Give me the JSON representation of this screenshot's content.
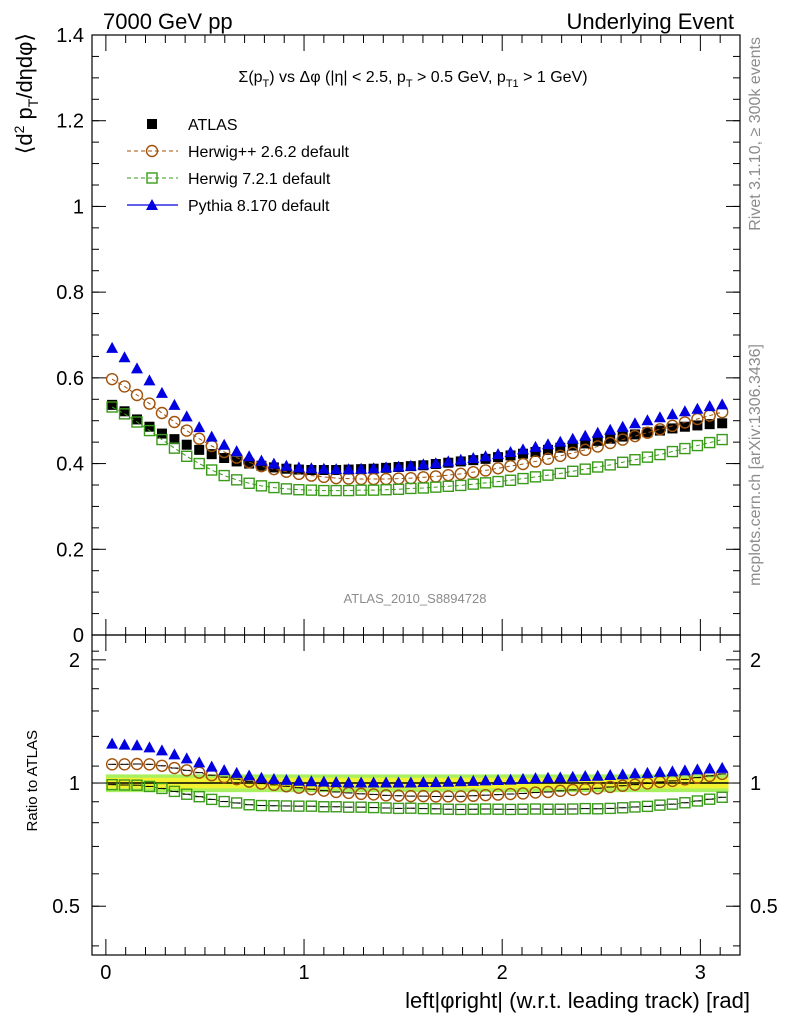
{
  "header": {
    "left": "7000 GeV pp",
    "right": "Underlying Event"
  },
  "side_texts": {
    "rivet": "Rivet 3.1.10, ≥ 300k events",
    "mcplots": "mcplots.cern.ch [arXiv:1306.3436]"
  },
  "watermark": "ATLAS_2010_S8894728",
  "colors": {
    "atlas": "#000000",
    "herwigpp": "#a0520a",
    "herwig7": "#3a9a1a",
    "pythia": "#0000e0",
    "band_inner": "#f2f230",
    "band_outer": "#a8f060"
  },
  "chart_data": [
    {
      "type": "scatter",
      "title": "Σ(p_T) vs Δφ (|η| < 2.5, p_T > 0.5 GeV, p_T1 > 1 GeV)",
      "title_parts": {
        "a": "Σ(p",
        "a_sub": "T",
        "b": ") vs Δφ (|η| < 2.5, p",
        "b_sub": "T",
        "c": " > 0.5 GeV, p",
        "c_sub": "T1",
        "d": " > 1 GeV)"
      },
      "ylabel": "⟨d² p_T/dηdφ⟩",
      "ylabel_parts": {
        "a": "⟨d",
        "sup": "2",
        "b": " p",
        "sub": "T",
        "c": "/dηdφ⟩"
      },
      "xlim": [
        -0.07,
        3.2
      ],
      "ylim": [
        0,
        1.4
      ],
      "yticks": [
        0,
        0.2,
        0.4,
        0.6,
        0.8,
        1,
        1.2,
        1.4
      ],
      "ytick_labels": [
        "0",
        "0.2",
        "0.4",
        "0.6",
        "0.8",
        "1",
        "1.2",
        "1.4"
      ],
      "legend_position": "top-left",
      "legend": [
        "ATLAS",
        "Herwig++ 2.6.2 default",
        "Herwig 7.2.1 default",
        "Pythia 8.170 default"
      ],
      "x": [
        0.0314,
        0.0942,
        0.157,
        0.22,
        0.283,
        0.346,
        0.408,
        0.471,
        0.534,
        0.597,
        0.66,
        0.723,
        0.785,
        0.848,
        0.911,
        0.974,
        1.037,
        1.1,
        1.162,
        1.225,
        1.288,
        1.351,
        1.414,
        1.477,
        1.539,
        1.602,
        1.665,
        1.728,
        1.791,
        1.854,
        1.916,
        1.979,
        2.042,
        2.105,
        2.168,
        2.231,
        2.293,
        2.356,
        2.419,
        2.482,
        2.545,
        2.608,
        2.67,
        2.733,
        2.796,
        2.859,
        2.922,
        2.985,
        3.047,
        3.11
      ],
      "series": [
        {
          "name": "ATLAS",
          "values": [
            0.537,
            0.522,
            0.503,
            0.486,
            0.47,
            0.457,
            0.444,
            0.432,
            0.422,
            0.413,
            0.405,
            0.4,
            0.395,
            0.391,
            0.388,
            0.386,
            0.385,
            0.385,
            0.385,
            0.386,
            0.387,
            0.388,
            0.39,
            0.392,
            0.394,
            0.396,
            0.399,
            0.402,
            0.405,
            0.408,
            0.411,
            0.415,
            0.419,
            0.423,
            0.427,
            0.432,
            0.437,
            0.442,
            0.447,
            0.453,
            0.458,
            0.463,
            0.468,
            0.473,
            0.477,
            0.482,
            0.486,
            0.489,
            0.492,
            0.494
          ]
        },
        {
          "name": "Herwig++ 2.6.2 default",
          "values": [
            0.597,
            0.58,
            0.56,
            0.54,
            0.518,
            0.497,
            0.477,
            0.458,
            0.441,
            0.427,
            0.414,
            0.403,
            0.394,
            0.387,
            0.381,
            0.376,
            0.372,
            0.369,
            0.366,
            0.365,
            0.364,
            0.364,
            0.364,
            0.365,
            0.366,
            0.368,
            0.37,
            0.373,
            0.376,
            0.38,
            0.384,
            0.389,
            0.394,
            0.399,
            0.405,
            0.411,
            0.418,
            0.425,
            0.432,
            0.44,
            0.448,
            0.456,
            0.464,
            0.472,
            0.48,
            0.488,
            0.496,
            0.504,
            0.512,
            0.52
          ]
        },
        {
          "name": "Herwig 7.2.1 default",
          "values": [
            0.532,
            0.516,
            0.497,
            0.477,
            0.456,
            0.436,
            0.417,
            0.4,
            0.385,
            0.372,
            0.362,
            0.354,
            0.348,
            0.344,
            0.341,
            0.339,
            0.338,
            0.337,
            0.337,
            0.337,
            0.338,
            0.338,
            0.339,
            0.34,
            0.342,
            0.343,
            0.345,
            0.347,
            0.349,
            0.352,
            0.355,
            0.358,
            0.361,
            0.365,
            0.369,
            0.373,
            0.377,
            0.382,
            0.387,
            0.392,
            0.397,
            0.403,
            0.409,
            0.415,
            0.421,
            0.428,
            0.435,
            0.442,
            0.449,
            0.456
          ]
        },
        {
          "name": "Pythia 8.170 default",
          "values": [
            0.67,
            0.648,
            0.622,
            0.594,
            0.565,
            0.537,
            0.51,
            0.485,
            0.463,
            0.444,
            0.429,
            0.417,
            0.407,
            0.4,
            0.395,
            0.391,
            0.389,
            0.388,
            0.387,
            0.387,
            0.388,
            0.389,
            0.391,
            0.393,
            0.395,
            0.398,
            0.401,
            0.405,
            0.409,
            0.413,
            0.417,
            0.422,
            0.427,
            0.433,
            0.439,
            0.445,
            0.451,
            0.458,
            0.465,
            0.472,
            0.479,
            0.486,
            0.494,
            0.501,
            0.508,
            0.515,
            0.522,
            0.528,
            0.534,
            0.538
          ]
        }
      ]
    },
    {
      "type": "scatter",
      "ylabel": "Ratio to ATLAS",
      "xlabel": "left|φright| (w.r.t. leading track) [rad]",
      "xlim": [
        -0.07,
        3.2
      ],
      "ylim": [
        0.38,
        2.3
      ],
      "yscale": "log",
      "xticks": [
        0,
        1,
        2,
        3
      ],
      "xtick_labels": [
        "0",
        "1",
        "2",
        "3"
      ],
      "yticks": [
        0.5,
        1,
        2
      ],
      "ytick_labels": [
        "0.5",
        "1",
        "2"
      ],
      "reference": 1.0,
      "band_inner_half": 0.03,
      "band_outer_half": 0.05,
      "x": [
        0.0314,
        0.0942,
        0.157,
        0.22,
        0.283,
        0.346,
        0.408,
        0.471,
        0.534,
        0.597,
        0.66,
        0.723,
        0.785,
        0.848,
        0.911,
        0.974,
        1.037,
        1.1,
        1.162,
        1.225,
        1.288,
        1.351,
        1.414,
        1.477,
        1.539,
        1.602,
        1.665,
        1.728,
        1.791,
        1.854,
        1.916,
        1.979,
        2.042,
        2.105,
        2.168,
        2.231,
        2.293,
        2.356,
        2.419,
        2.482,
        2.545,
        2.608,
        2.67,
        2.733,
        2.796,
        2.859,
        2.922,
        2.985,
        3.047,
        3.11
      ],
      "series": [
        {
          "name": "Herwig++ 2.6.2 default",
          "values": [
            1.111,
            1.111,
            1.113,
            1.111,
            1.102,
            1.088,
            1.074,
            1.06,
            1.045,
            1.034,
            1.022,
            1.008,
            0.997,
            0.99,
            0.982,
            0.974,
            0.966,
            0.958,
            0.951,
            0.946,
            0.941,
            0.938,
            0.933,
            0.931,
            0.929,
            0.929,
            0.927,
            0.928,
            0.928,
            0.931,
            0.934,
            0.937,
            0.94,
            0.943,
            0.948,
            0.951,
            0.957,
            0.962,
            0.966,
            0.971,
            0.978,
            0.985,
            0.991,
            0.998,
            1.006,
            1.012,
            1.021,
            1.031,
            1.041,
            1.053
          ]
        },
        {
          "name": "Herwig 7.2.1 default",
          "values": [
            0.991,
            0.989,
            0.988,
            0.981,
            0.97,
            0.954,
            0.939,
            0.926,
            0.912,
            0.901,
            0.894,
            0.885,
            0.881,
            0.88,
            0.879,
            0.878,
            0.878,
            0.875,
            0.875,
            0.873,
            0.873,
            0.871,
            0.869,
            0.867,
            0.868,
            0.866,
            0.865,
            0.863,
            0.862,
            0.863,
            0.864,
            0.863,
            0.862,
            0.863,
            0.864,
            0.863,
            0.863,
            0.864,
            0.866,
            0.865,
            0.867,
            0.87,
            0.874,
            0.877,
            0.883,
            0.888,
            0.895,
            0.904,
            0.913,
            0.923
          ]
        },
        {
          "name": "Pythia 8.170 default",
          "values": [
            1.248,
            1.241,
            1.237,
            1.222,
            1.202,
            1.175,
            1.149,
            1.123,
            1.097,
            1.075,
            1.059,
            1.043,
            1.03,
            1.023,
            1.018,
            1.013,
            1.01,
            1.008,
            1.005,
            1.003,
            1.003,
            1.003,
            1.003,
            1.003,
            1.003,
            1.005,
            1.005,
            1.007,
            1.01,
            1.012,
            1.015,
            1.017,
            1.019,
            1.024,
            1.028,
            1.03,
            1.032,
            1.036,
            1.04,
            1.042,
            1.046,
            1.05,
            1.056,
            1.059,
            1.065,
            1.068,
            1.074,
            1.08,
            1.085,
            1.089
          ]
        }
      ]
    }
  ]
}
